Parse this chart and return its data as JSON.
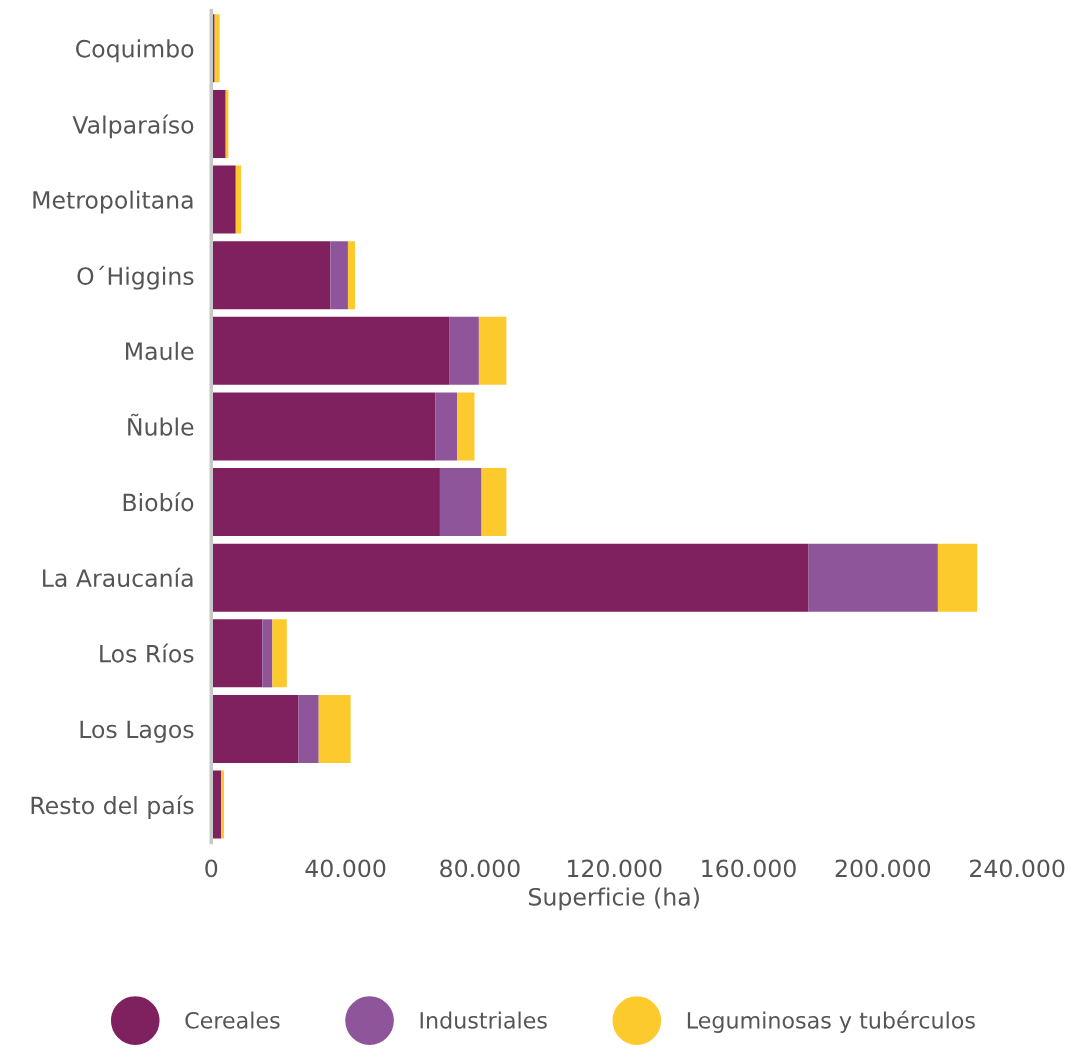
{
  "chart_data": {
    "type": "bar",
    "orientation": "horizontal",
    "stacked": true,
    "categories": [
      "Coquimbo",
      "Valparaíso",
      "Metropolitana",
      "O´Higgins",
      "Maule",
      "Ñuble",
      "Biobío",
      "La Araucanía",
      "Los Ríos",
      "Los Lagos",
      "Resto del país"
    ],
    "series": [
      {
        "name": "Cereales",
        "color": "#7f215e",
        "values": [
          1000,
          4300,
          7300,
          35500,
          71000,
          66700,
          68100,
          177900,
          15200,
          26000,
          3000
        ]
      },
      {
        "name": "Industriales",
        "color": "#8e559b",
        "values": [
          0,
          0,
          0,
          5200,
          8700,
          6500,
          12400,
          38500,
          3000,
          6000,
          0
        ]
      },
      {
        "name": "Leguminosas y tubérculos",
        "color": "#fdca2d",
        "values": [
          1500,
          800,
          1600,
          2100,
          8200,
          5200,
          7400,
          11700,
          4300,
          9500,
          800
        ]
      }
    ],
    "xlabel": "Superficie (ha)",
    "xlim": [
      0,
      240000
    ],
    "xticks": [
      0,
      {
        "value": 40000,
        "label": "40.000"
      },
      {
        "value": 80000,
        "label": "80.000"
      },
      {
        "value": 120000,
        "label": "120.000"
      },
      {
        "value": 160000,
        "label": "160.000"
      },
      {
        "value": 200000,
        "label": "200.000"
      },
      {
        "value": 240000,
        "label": "240.000"
      }
    ],
    "grid": false,
    "legend": "bottom",
    "marker": "circle"
  }
}
